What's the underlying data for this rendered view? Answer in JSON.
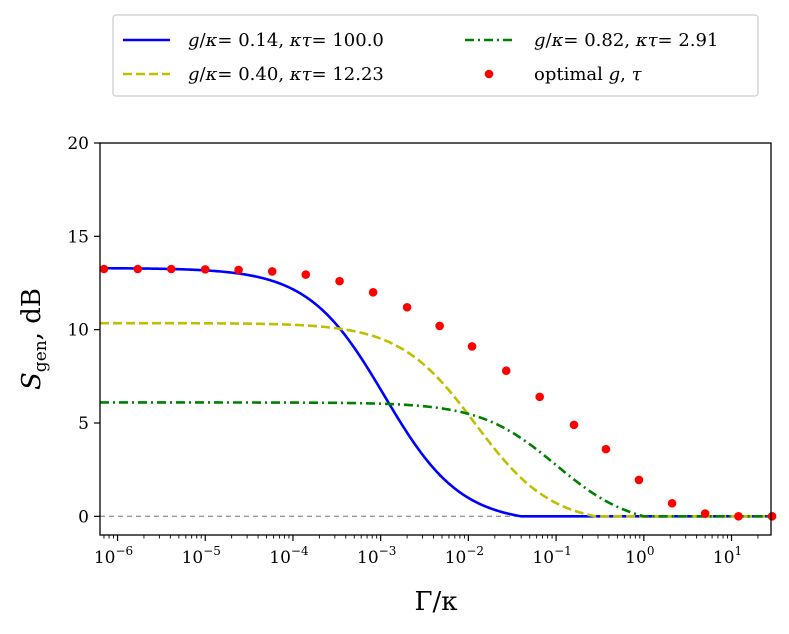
{
  "chart_data": {
    "type": "line",
    "title": "",
    "xlabel": "Γ/κ",
    "ylabel": "S_gen, dB",
    "ylabel_main": "S",
    "ylabel_sub": "gen",
    "ylabel_unit": ", dB",
    "xscale": "log",
    "xlim_log10": [
      -6.2,
      1.45
    ],
    "ylim": [
      -1,
      20
    ],
    "x_ticks": [
      {
        "exp": -6,
        "base": "10",
        "sup": "−6"
      },
      {
        "exp": -5,
        "base": "10",
        "sup": "−5"
      },
      {
        "exp": -4,
        "base": "10",
        "sup": "−4"
      },
      {
        "exp": -3,
        "base": "10",
        "sup": "−3"
      },
      {
        "exp": -2,
        "base": "10",
        "sup": "−2"
      },
      {
        "exp": -1,
        "base": "10",
        "sup": "−1"
      },
      {
        "exp": 0,
        "base": "10",
        "sup": "0"
      },
      {
        "exp": 1,
        "base": "10",
        "sup": "1"
      }
    ],
    "y_ticks": [
      {
        "value": 0,
        "label": "0"
      },
      {
        "value": 5,
        "label": "5"
      },
      {
        "value": 10,
        "label": "10"
      },
      {
        "value": 15,
        "label": "15"
      },
      {
        "value": 20,
        "label": "20"
      }
    ],
    "reference_line": {
      "y": 0,
      "color": "#999999",
      "style": "dashed"
    },
    "legend": {
      "placement": "top, outside plot",
      "columns": 2
    },
    "series": [
      {
        "name": "g/κ= 0.14, κτ= 100.0",
        "legend_parts": {
          "g": "0.14",
          "tau": "100.0"
        },
        "kind": "line",
        "style": "solid",
        "color": "#0000ff",
        "plateau": 13.3,
        "gamma_c": 0.0011,
        "shape": 1,
        "zero_at": 0.04
      },
      {
        "name": "g/κ= 0.40, κτ= 12.23",
        "legend_parts": {
          "g": "0.40",
          "tau": "12.23"
        },
        "kind": "line",
        "style": "dashed",
        "color": "#bfbf00",
        "plateau": 10.35,
        "gamma_c": 0.012,
        "shape": 1,
        "zero_at": 0.28
      },
      {
        "name": "g/κ= 0.82, κτ= 2.91",
        "legend_parts": {
          "g": "0.82",
          "tau": "2.91"
        },
        "kind": "line",
        "style": "dashdot",
        "color": "#008000",
        "plateau": 6.1,
        "gamma_c": 0.1,
        "shape": 1,
        "zero_at": 1.0
      },
      {
        "name": "optimal g, τ",
        "legend_parts": {
          "text": "optimal",
          "g": "g",
          "tau": "τ"
        },
        "kind": "scatter",
        "color": "#ff0000",
        "x": [
          7e-07,
          1.7e-06,
          4.1e-06,
          1e-05,
          2.4e-05,
          5.8e-05,
          0.00014,
          0.00034,
          0.00082,
          0.002,
          0.0047,
          0.011,
          0.027,
          0.065,
          0.16,
          0.37,
          0.88,
          2.1,
          5.0,
          12,
          29
        ],
        "y": [
          13.25,
          13.25,
          13.25,
          13.23,
          13.2,
          13.12,
          12.95,
          12.6,
          12.0,
          11.2,
          10.2,
          9.1,
          7.8,
          6.4,
          4.9,
          3.6,
          1.95,
          0.7,
          0.15,
          0.0,
          0.0
        ]
      }
    ]
  }
}
